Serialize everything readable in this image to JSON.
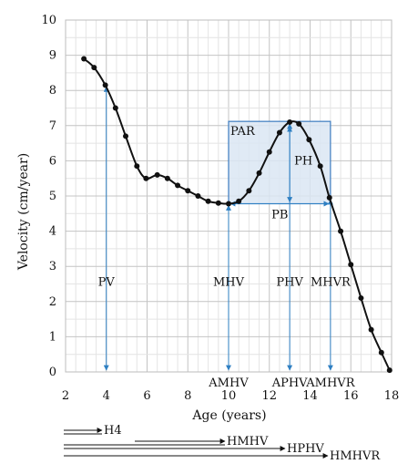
{
  "chart_data": {
    "type": "line",
    "xlabel": "Age (years)",
    "ylabel": "Velocity (cm/year)",
    "xlim": [
      2,
      18
    ],
    "ylim": [
      0,
      10
    ],
    "x_ticks": [
      2,
      4,
      6,
      8,
      10,
      12,
      14,
      16,
      18
    ],
    "y_ticks": [
      0,
      1,
      2,
      3,
      4,
      5,
      6,
      7,
      8,
      9,
      10
    ],
    "grid": true,
    "series": [
      {
        "color": "#111111",
        "points": [
          [
            2.9,
            8.9
          ],
          [
            3.4,
            8.65
          ],
          [
            3.95,
            8.15
          ],
          [
            4.45,
            7.5
          ],
          [
            4.95,
            6.7
          ],
          [
            5.5,
            5.85
          ],
          [
            5.95,
            5.5
          ],
          [
            6.5,
            5.6
          ],
          [
            7.0,
            5.5
          ],
          [
            7.5,
            5.3
          ],
          [
            8.0,
            5.15
          ],
          [
            8.5,
            5.0
          ],
          [
            9.0,
            4.85
          ],
          [
            9.5,
            4.8
          ],
          [
            10.0,
            4.78
          ],
          [
            10.5,
            4.85
          ],
          [
            11.0,
            5.15
          ],
          [
            11.5,
            5.65
          ],
          [
            12.0,
            6.25
          ],
          [
            12.5,
            6.8
          ],
          [
            13.0,
            7.1
          ],
          [
            13.45,
            7.05
          ],
          [
            13.95,
            6.6
          ],
          [
            14.5,
            5.85
          ],
          [
            14.95,
            4.95
          ],
          [
            15.5,
            4.0
          ],
          [
            16.0,
            3.05
          ],
          [
            16.5,
            2.1
          ],
          [
            17.0,
            1.2
          ],
          [
            17.5,
            0.55
          ],
          [
            17.9,
            0.05
          ]
        ]
      }
    ],
    "region": {
      "label": "PAR",
      "x": [
        10,
        15
      ],
      "y": [
        4.78,
        7.12
      ]
    },
    "vertical_markers": [
      {
        "x": 4,
        "y_top": 8.15,
        "label": "PV",
        "axis_label": ""
      },
      {
        "x": 10,
        "y_top": 4.78,
        "label": "MHV",
        "axis_label": "AMHV"
      },
      {
        "x": 13,
        "y_top": 7.1,
        "label": "PHV",
        "axis_label": "APHV"
      },
      {
        "x": 15,
        "y_top": 4.95,
        "label": "MHVR",
        "axis_label": "AMHVR"
      }
    ],
    "internal_labels": {
      "ph": "PH",
      "pb": "PB"
    },
    "interval_arrows": [
      {
        "label": "H4",
        "end_x": 4
      },
      {
        "label": "HMHV",
        "end_x": 10
      },
      {
        "label": "HPHV",
        "end_x": 13
      },
      {
        "label": "HMHVR",
        "end_x": 15
      }
    ],
    "colors": {
      "curve": "#111111",
      "marker": "#2e7fc2",
      "region_fill": "#dbe6f3",
      "region_stroke": "#3d7cc0",
      "grid": "#d6d6d6"
    }
  }
}
